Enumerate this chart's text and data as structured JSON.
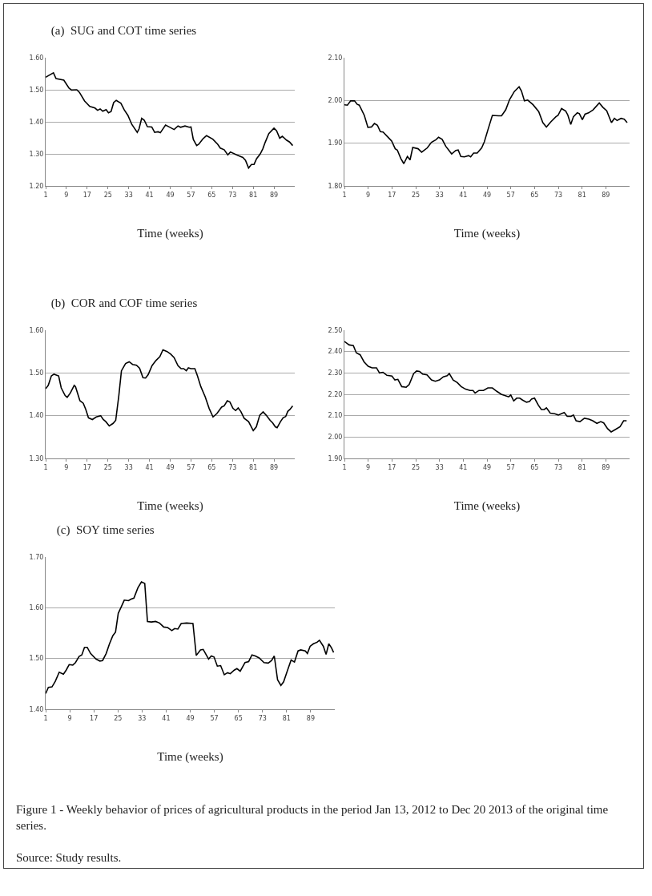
{
  "chart_data": [
    {
      "type": "line",
      "title": "(a)  SUG and COT time series",
      "xlabel": "Time (weeks)",
      "color": "#000000",
      "marker": "none",
      "line_style": "solid",
      "grid": "y",
      "xlim": [
        1,
        97
      ],
      "xticks": [
        1,
        9,
        17,
        25,
        33,
        41,
        49,
        57,
        65,
        73,
        81,
        89
      ],
      "ylim": [
        1.2,
        1.6
      ],
      "yticks": [
        {
          "value": 1.2,
          "label": "1.20"
        },
        {
          "value": 1.3,
          "label": "1.30"
        },
        {
          "value": 1.4,
          "label": "1.40"
        },
        {
          "value": 1.5,
          "label": "1.50"
        },
        {
          "value": 1.6,
          "label": "1.60"
        }
      ],
      "x": [
        1,
        4,
        5,
        8,
        10,
        11,
        13,
        14,
        16,
        18,
        20,
        21,
        22,
        23,
        24.3,
        25.2,
        26.2,
        27.2,
        28.2,
        30,
        31.3,
        32.7,
        34.2,
        36.3,
        37,
        38,
        39,
        40.2,
        41.9,
        43,
        44.3,
        45.2,
        47.2,
        48.6,
        50.5,
        52,
        53,
        54.7,
        56.3,
        57,
        57.9,
        59.2,
        60,
        61.6,
        63,
        65.4,
        67.3,
        68.3,
        69.8,
        71.2,
        72.2,
        74.6,
        77,
        78,
        79.2,
        80.3,
        81.3,
        82.3,
        83.7,
        84.7,
        85.6,
        87,
        89,
        90,
        91.2,
        92.2,
        93.8,
        95,
        96.2
      ],
      "values": [
        1.539,
        1.553,
        1.535,
        1.53,
        1.505,
        1.499,
        1.5,
        1.492,
        1.465,
        1.448,
        1.443,
        1.436,
        1.44,
        1.433,
        1.438,
        1.428,
        1.432,
        1.46,
        1.467,
        1.458,
        1.437,
        1.42,
        1.392,
        1.367,
        1.378,
        1.411,
        1.405,
        1.385,
        1.384,
        1.367,
        1.369,
        1.366,
        1.39,
        1.384,
        1.376,
        1.387,
        1.383,
        1.387,
        1.383,
        1.384,
        1.345,
        1.326,
        1.33,
        1.347,
        1.357,
        1.346,
        1.33,
        1.318,
        1.313,
        1.297,
        1.306,
        1.297,
        1.289,
        1.28,
        1.256,
        1.267,
        1.267,
        1.285,
        1.3,
        1.316,
        1.336,
        1.363,
        1.38,
        1.372,
        1.349,
        1.355,
        1.343,
        1.337,
        1.326
      ]
    },
    {
      "type": "line",
      "xlabel": "Time (weeks)",
      "color": "#000000",
      "marker": "none",
      "line_style": "solid",
      "grid": "y",
      "xlim": [
        1,
        97
      ],
      "xticks": [
        1,
        9,
        17,
        25,
        33,
        41,
        49,
        57,
        65,
        73,
        81,
        89
      ],
      "ylim": [
        1.8,
        2.1
      ],
      "yticks": [
        {
          "value": 1.8,
          "label": "1.80"
        },
        {
          "value": 1.9,
          "label": "1.90"
        },
        {
          "value": 2.0,
          "label": "2.00"
        },
        {
          "value": 2.1,
          "label": "2.10"
        }
      ],
      "x": [
        1,
        2,
        3.1,
        4.4,
        5.3,
        6,
        7.7,
        8.9,
        10.1,
        11.1,
        12.1,
        13.1,
        14,
        15.4,
        16.9,
        18.1,
        18.8,
        20,
        21,
        22.2,
        23.1,
        24,
        25.8,
        27,
        28.9,
        30.3,
        31.8,
        32.7,
        33.9,
        35.1,
        37.1,
        38.5,
        39.3,
        40.2,
        41.4,
        42.8,
        43.5,
        44.5,
        45.7,
        47.2,
        48.1,
        49.3,
        50.8,
        52.9,
        53.9,
        55.3,
        56.6,
        58.2,
        59.8,
        60.6,
        61.6,
        62.7,
        64.5,
        66.4,
        67.8,
        69,
        70.5,
        72.2,
        72.9,
        74.1,
        75.5,
        76.2,
        77.2,
        78.1,
        79.4,
        80.1,
        81.1,
        82,
        83.2,
        84.7,
        86.8,
        88,
        89.3,
        90.9,
        91.9,
        92.8,
        94.1,
        95.2,
        96.2
      ],
      "values": [
        1.99,
        1.989,
        1.999,
        1.999,
        1.991,
        1.989,
        1.965,
        1.937,
        1.938,
        1.946,
        1.942,
        1.927,
        1.926,
        1.916,
        1.905,
        1.887,
        1.884,
        1.864,
        1.852,
        1.869,
        1.861,
        1.89,
        1.887,
        1.879,
        1.889,
        1.902,
        1.908,
        1.914,
        1.909,
        1.893,
        1.875,
        1.883,
        1.884,
        1.869,
        1.868,
        1.871,
        1.868,
        1.877,
        1.877,
        1.889,
        1.903,
        1.931,
        1.965,
        1.964,
        1.964,
        1.978,
        2.002,
        2.021,
        2.032,
        2.022,
        1.999,
        2.001,
        1.99,
        1.974,
        1.948,
        1.938,
        1.95,
        1.962,
        1.965,
        1.981,
        1.975,
        1.966,
        1.944,
        1.962,
        1.971,
        1.969,
        1.955,
        1.968,
        1.971,
        1.978,
        1.994,
        1.984,
        1.976,
        1.948,
        1.958,
        1.953,
        1.958,
        1.956,
        1.948
      ]
    },
    {
      "type": "line",
      "title": "(b)  COR and COF time series",
      "xlabel": "Time (weeks)",
      "color": "#000000",
      "marker": "none",
      "line_style": "solid",
      "grid": "y",
      "xlim": [
        1,
        97
      ],
      "xticks": [
        1,
        9,
        17,
        25,
        33,
        41,
        49,
        57,
        65,
        73,
        81,
        89
      ],
      "ylim": [
        1.3,
        1.6
      ],
      "yticks": [
        {
          "value": 1.3,
          "label": "1.30"
        },
        {
          "value": 1.4,
          "label": "1.40"
        },
        {
          "value": 1.5,
          "label": "1.50"
        },
        {
          "value": 1.6,
          "label": "1.60"
        }
      ],
      "x": [
        1,
        2,
        3.2,
        4.2,
        6,
        7,
        8.5,
        9.3,
        10.5,
        12,
        12.5,
        14.2,
        15.5,
        16.5,
        17.5,
        19,
        20.5,
        22.2,
        23.2,
        24.2,
        25.5,
        27,
        28,
        29.2,
        30.2,
        31.8,
        33.2,
        34.5,
        36,
        37.2,
        38.5,
        39.5,
        40.5,
        42,
        43.5,
        45,
        46.2,
        47.8,
        49.2,
        50.5,
        52,
        53.2,
        54.2,
        55.2,
        56,
        57,
        58.5,
        59.5,
        60.8,
        62.5,
        64,
        65.5,
        67,
        68.8,
        69.8,
        71,
        72,
        73.2,
        74.2,
        75.2,
        76.2,
        77.5,
        79.2,
        81,
        82.2,
        83.5,
        84.8,
        86,
        87.5,
        88.5,
        89.5,
        90.2,
        91.5,
        92.5,
        93.5,
        94.3,
        95.2,
        96.2
      ],
      "values": [
        1.463,
        1.471,
        1.493,
        1.497,
        1.493,
        1.465,
        1.447,
        1.443,
        1.453,
        1.471,
        1.468,
        1.435,
        1.429,
        1.414,
        1.395,
        1.391,
        1.397,
        1.4,
        1.391,
        1.386,
        1.376,
        1.382,
        1.389,
        1.447,
        1.505,
        1.522,
        1.526,
        1.52,
        1.518,
        1.511,
        1.489,
        1.488,
        1.496,
        1.517,
        1.529,
        1.538,
        1.554,
        1.55,
        1.544,
        1.536,
        1.517,
        1.51,
        1.51,
        1.505,
        1.512,
        1.51,
        1.51,
        1.493,
        1.468,
        1.444,
        1.417,
        1.397,
        1.405,
        1.42,
        1.423,
        1.435,
        1.432,
        1.417,
        1.412,
        1.418,
        1.41,
        1.394,
        1.386,
        1.365,
        1.374,
        1.401,
        1.409,
        1.401,
        1.389,
        1.383,
        1.374,
        1.372,
        1.386,
        1.395,
        1.398,
        1.41,
        1.415,
        1.423
      ]
    },
    {
      "type": "line",
      "xlabel": "Time (weeks)",
      "color": "#000000",
      "marker": "none",
      "line_style": "solid",
      "grid": "y",
      "xlim": [
        1,
        97
      ],
      "xticks": [
        1,
        9,
        17,
        25,
        33,
        41,
        49,
        57,
        65,
        73,
        81,
        89
      ],
      "ylim": [
        1.9,
        2.5
      ],
      "yticks": [
        {
          "value": 1.9,
          "label": "1.90"
        },
        {
          "value": 2.0,
          "label": "2.00"
        },
        {
          "value": 2.1,
          "label": "2.10"
        },
        {
          "value": 2.2,
          "label": "2.20"
        },
        {
          "value": 2.3,
          "label": "2.30"
        },
        {
          "value": 2.4,
          "label": "2.40"
        },
        {
          "value": 2.5,
          "label": "2.50"
        }
      ],
      "x": [
        1,
        2.6,
        4,
        5,
        6.3,
        7.6,
        9,
        10.3,
        11.8,
        12.8,
        14,
        15.3,
        17,
        18,
        19,
        20.3,
        21.8,
        22.8,
        24.3,
        25.3,
        26.3,
        27.3,
        28.8,
        30.3,
        31.6,
        33,
        34.3,
        35.6,
        36.3,
        37.6,
        39,
        40.3,
        41.8,
        43.3,
        44.3,
        45,
        46.3,
        47.8,
        49.3,
        50.8,
        52.3,
        53.8,
        55,
        56.3,
        57,
        58,
        59,
        60,
        61,
        62.3,
        63.3,
        64,
        65,
        66.3,
        67.3,
        68.3,
        69,
        70.3,
        71.8,
        73,
        74,
        75,
        76,
        77.3,
        78.1,
        79,
        80.3,
        81.8,
        83.3,
        84.6,
        86,
        87.3,
        88.3,
        89.6,
        90.8,
        92.3,
        93.8,
        95,
        96
      ],
      "values": [
        2.447,
        2.431,
        2.428,
        2.394,
        2.385,
        2.352,
        2.331,
        2.324,
        2.324,
        2.3,
        2.303,
        2.289,
        2.285,
        2.267,
        2.27,
        2.236,
        2.233,
        2.246,
        2.297,
        2.309,
        2.307,
        2.295,
        2.291,
        2.267,
        2.261,
        2.267,
        2.282,
        2.287,
        2.297,
        2.267,
        2.255,
        2.236,
        2.224,
        2.218,
        2.218,
        2.206,
        2.218,
        2.218,
        2.23,
        2.23,
        2.214,
        2.2,
        2.194,
        2.188,
        2.197,
        2.169,
        2.182,
        2.182,
        2.173,
        2.163,
        2.166,
        2.178,
        2.182,
        2.149,
        2.129,
        2.129,
        2.137,
        2.112,
        2.109,
        2.103,
        2.109,
        2.115,
        2.097,
        2.097,
        2.103,
        2.076,
        2.072,
        2.088,
        2.084,
        2.076,
        2.064,
        2.072,
        2.066,
        2.039,
        2.024,
        2.036,
        2.048,
        2.076,
        2.076
      ]
    },
    {
      "type": "line",
      "title": "(c)  SOY time series",
      "xlabel": "Time (weeks)",
      "color": "#000000",
      "marker": "none",
      "line_style": "solid",
      "grid": "y",
      "xlim": [
        1,
        97
      ],
      "xticks": [
        1,
        9,
        17,
        25,
        33,
        41,
        49,
        57,
        65,
        73,
        81,
        89
      ],
      "ylim": [
        1.4,
        1.7
      ],
      "yticks": [
        {
          "value": 1.4,
          "label": "1.40"
        },
        {
          "value": 1.5,
          "label": "1.50"
        },
        {
          "value": 1.6,
          "label": "1.60"
        },
        {
          "value": 1.7,
          "label": "1.70"
        }
      ],
      "x": [
        1,
        1.9,
        3.1,
        4.2,
        5.5,
        6.9,
        7.8,
        8.8,
        10,
        10.9,
        12.1,
        13,
        13.9,
        14.8,
        15.9,
        17.7,
        19,
        19.9,
        21.1,
        22.2,
        23.3,
        24.2,
        25.1,
        26.2,
        27.1,
        28.5,
        29.4,
        30.3,
        31.6,
        32.8,
        33.9,
        34.8,
        36.1,
        37.5,
        38.8,
        40.2,
        41.5,
        42.9,
        43.8,
        44.9,
        46,
        47.8,
        49.9,
        51,
        52.4,
        53.3,
        55.1,
        56,
        56.9,
        58,
        59.1,
        60.3,
        61.4,
        62.3,
        63.6,
        64.5,
        65.6,
        67.2,
        68.4,
        69.5,
        70.6,
        71.9,
        73.5,
        74.9,
        76,
        76.9,
        78,
        79.1,
        80,
        81.2,
        82.5,
        83.6,
        84.8,
        85.7,
        87.2,
        87.9,
        88.8,
        89.9,
        91.1,
        91.9,
        93.2,
        94.1,
        95,
        95.9,
        96.6
      ],
      "values": [
        1.431,
        1.443,
        1.444,
        1.455,
        1.473,
        1.469,
        1.477,
        1.488,
        1.487,
        1.492,
        1.504,
        1.507,
        1.522,
        1.522,
        1.51,
        1.499,
        1.495,
        1.496,
        1.51,
        1.529,
        1.545,
        1.552,
        1.589,
        1.603,
        1.615,
        1.614,
        1.617,
        1.619,
        1.639,
        1.651,
        1.648,
        1.573,
        1.572,
        1.573,
        1.57,
        1.562,
        1.561,
        1.555,
        1.559,
        1.558,
        1.569,
        1.57,
        1.569,
        1.506,
        1.517,
        1.518,
        1.499,
        1.505,
        1.503,
        1.485,
        1.486,
        1.468,
        1.472,
        1.47,
        1.477,
        1.48,
        1.475,
        1.492,
        1.494,
        1.507,
        1.505,
        1.501,
        1.492,
        1.491,
        1.496,
        1.505,
        1.458,
        1.447,
        1.454,
        1.475,
        1.497,
        1.493,
        1.515,
        1.517,
        1.515,
        1.51,
        1.524,
        1.529,
        1.532,
        1.536,
        1.524,
        1.508,
        1.529,
        1.521,
        1.512
      ],
      "annotations": [
        "Figure 1 - Weekly behavior of prices of agricultural products in the period Jan 13, 2012 to Dec 20 2013 of the original time series.",
        "Source: Study results."
      ]
    }
  ]
}
